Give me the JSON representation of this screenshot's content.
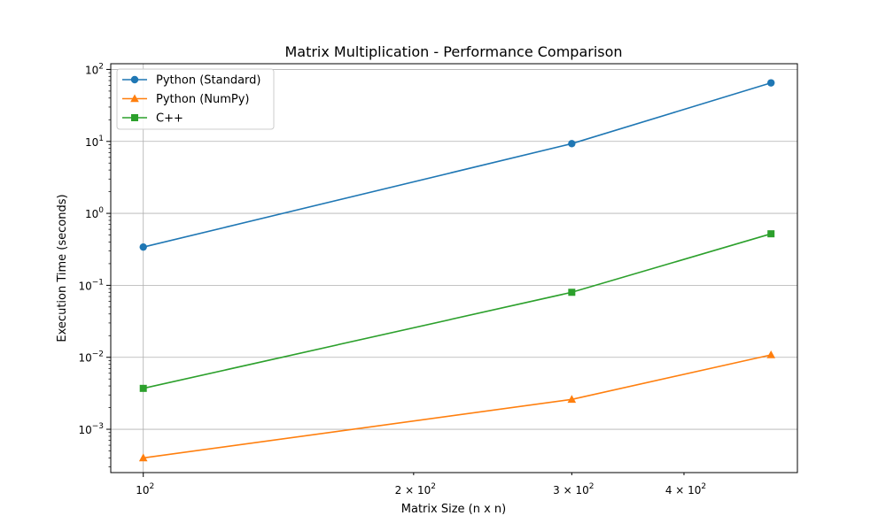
{
  "chart_data": {
    "type": "line",
    "title": "Matrix Multiplication - Performance Comparison",
    "xlabel": "Matrix Size (n x n)",
    "ylabel": "Execution Time (seconds)",
    "x_scale": "log",
    "y_scale": "log",
    "xlim": [
      92,
      535
    ],
    "ylim": [
      0.00025,
      120
    ],
    "grid": true,
    "legend_position": "top-left",
    "x": [
      100,
      300,
      500
    ],
    "x_ticks": [
      {
        "value": 100,
        "base": "10",
        "exp": "2"
      },
      {
        "value": 200,
        "base": "2 × 10",
        "exp": "2"
      },
      {
        "value": 300,
        "base": "3 × 10",
        "exp": "2"
      },
      {
        "value": 400,
        "base": "4 × 10",
        "exp": "2"
      }
    ],
    "y_ticks": [
      {
        "value": 0.001,
        "base": "10",
        "exp": "−3"
      },
      {
        "value": 0.01,
        "base": "10",
        "exp": "−2"
      },
      {
        "value": 0.1,
        "base": "10",
        "exp": "−1"
      },
      {
        "value": 1,
        "base": "10",
        "exp": "0"
      },
      {
        "value": 10,
        "base": "10",
        "exp": "1"
      },
      {
        "value": 100,
        "base": "10",
        "exp": "2"
      }
    ],
    "series": [
      {
        "name": "Python (Standard)",
        "values": [
          0.34,
          9.3,
          65
        ],
        "color": "#1f77b4",
        "marker": "circle"
      },
      {
        "name": "Python (NumPy)",
        "values": [
          0.0004,
          0.0026,
          0.0108
        ],
        "color": "#ff7f0e",
        "marker": "triangle"
      },
      {
        "name": "C++",
        "values": [
          0.0037,
          0.08,
          0.52
        ],
        "color": "#2ca02c",
        "marker": "square"
      }
    ]
  }
}
